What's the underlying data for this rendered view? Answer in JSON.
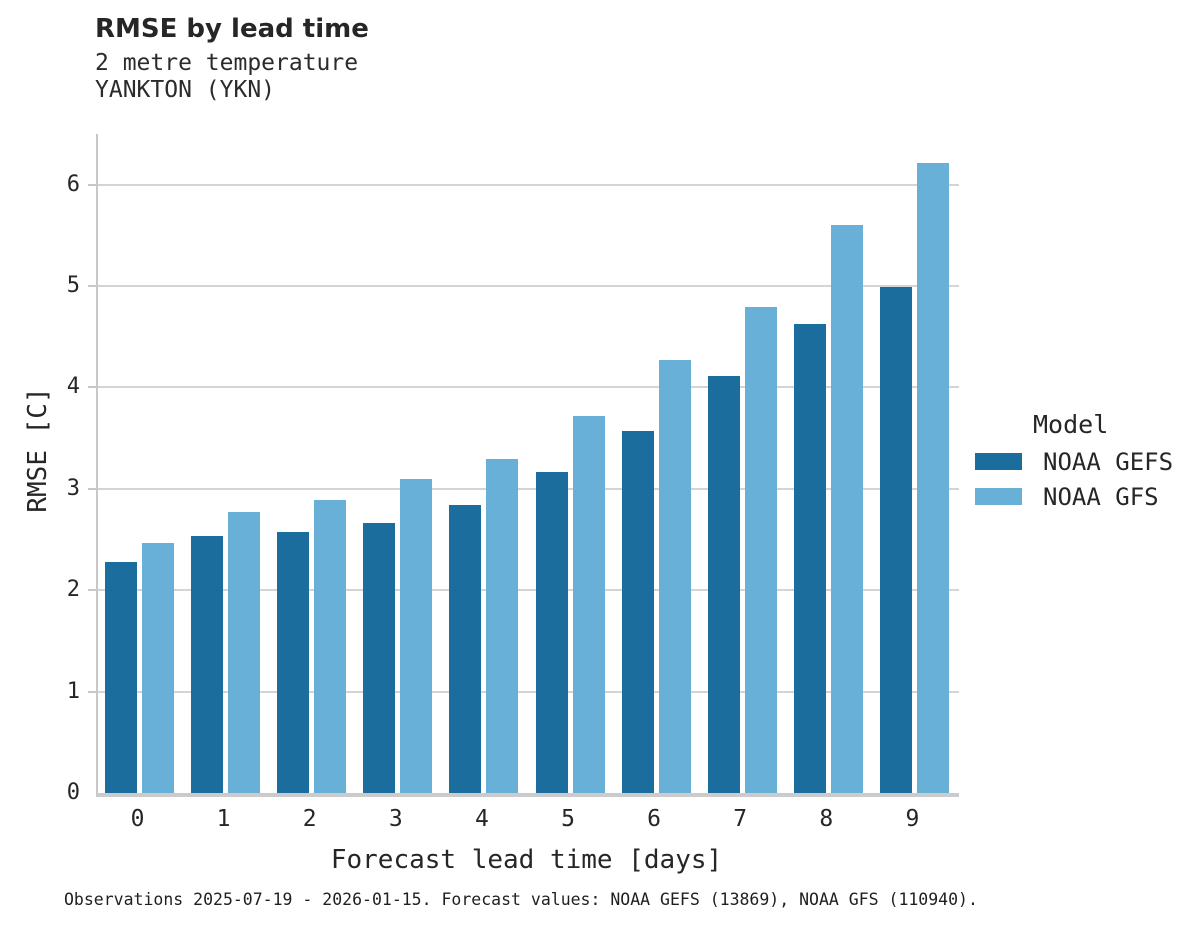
{
  "header": {
    "title": "RMSE by lead time",
    "subtitle_line1": "2 metre temperature",
    "subtitle_line2": "YANKTON (YKN)"
  },
  "chart_data": {
    "type": "bar",
    "title": "RMSE by lead time",
    "subtitle": [
      "2 metre temperature",
      "YANKTON (YKN)"
    ],
    "categories": [
      "0",
      "1",
      "2",
      "3",
      "4",
      "5",
      "6",
      "7",
      "8",
      "9"
    ],
    "series": [
      {
        "name": "NOAA GEFS",
        "color": "#1b6d9e",
        "values": [
          2.28,
          2.54,
          2.57,
          2.66,
          2.84,
          3.17,
          3.57,
          4.11,
          4.63,
          4.99
        ]
      },
      {
        "name": "NOAA GFS",
        "color": "#68b0d7",
        "values": [
          2.47,
          2.77,
          2.89,
          3.1,
          3.29,
          3.72,
          4.27,
          4.79,
          5.6,
          6.21
        ]
      }
    ],
    "xlabel": "Forecast lead time [days]",
    "ylabel": "RMSE [C]",
    "ylim": [
      0,
      6.5
    ],
    "yticks": [
      0,
      1,
      2,
      3,
      4,
      5,
      6
    ],
    "grid": "horizontal",
    "legend_title": "Model",
    "legend_position": "right",
    "colors": {
      "grid": "#d4d4d4",
      "axis": "#c8c8c8",
      "text": "#262626"
    }
  },
  "caption": {
    "text": "Observations 2025-07-19 - 2026-01-15. Forecast values: NOAA GEFS (13869), NOAA GFS (110940)."
  }
}
